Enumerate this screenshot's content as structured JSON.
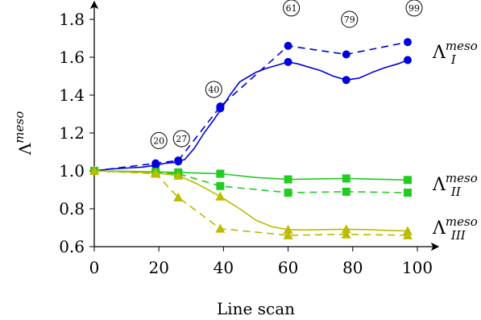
{
  "chart_data": {
    "type": "line",
    "xlabel": "Line scan",
    "ylabel": "Λ",
    "ylabel_sup": "meso",
    "xlim": [
      0,
      100
    ],
    "ylim": [
      0.6,
      1.9
    ],
    "x_ticks": [
      "0",
      "20",
      "40",
      "60",
      "80",
      "100"
    ],
    "y_ticks": [
      "0.6",
      "0.8",
      "1.0",
      "1.2",
      "1.4",
      "1.6",
      "1.8"
    ],
    "grid": false,
    "colors": {
      "I": "#0000dd",
      "II": "#22cc22",
      "III": "#bbbb00"
    },
    "series": [
      {
        "key": "I",
        "label": "Λ",
        "label_sup": "meso",
        "label_sub": "I",
        "style": "solid",
        "marker": "circle",
        "x": [
          0,
          5,
          10,
          15,
          19,
          22,
          25,
          28,
          31,
          34,
          37,
          39,
          42,
          45,
          48,
          50,
          53,
          56,
          60,
          63,
          66,
          70,
          74,
          78,
          82,
          86,
          90,
          94,
          97
        ],
        "y": [
          1.0,
          1.01,
          1.015,
          1.02,
          1.03,
          1.04,
          1.045,
          1.06,
          1.12,
          1.2,
          1.27,
          1.32,
          1.4,
          1.47,
          1.5,
          1.52,
          1.54,
          1.555,
          1.575,
          1.565,
          1.55,
          1.53,
          1.5,
          1.48,
          1.49,
          1.52,
          1.545,
          1.565,
          1.585
        ],
        "marker_x": [
          0,
          19,
          26,
          39,
          60,
          78,
          97
        ],
        "marker_y": [
          1.0,
          1.03,
          1.05,
          1.33,
          1.575,
          1.48,
          1.585
        ]
      },
      {
        "key": "I",
        "label": "",
        "style": "dashed",
        "marker": "circle",
        "x": [
          0,
          19,
          26,
          39,
          60,
          78,
          97
        ],
        "y": [
          1.0,
          1.04,
          1.055,
          1.34,
          1.66,
          1.615,
          1.68
        ],
        "marker_x": [
          0,
          19,
          26,
          39,
          60,
          78,
          97
        ],
        "marker_y": [
          1.0,
          1.04,
          1.055,
          1.34,
          1.66,
          1.615,
          1.68
        ]
      },
      {
        "key": "II",
        "label": "Λ",
        "label_sup": "meso",
        "label_sub": "II",
        "style": "solid",
        "marker": "square",
        "x": [
          0,
          10,
          19,
          26,
          39,
          50,
          60,
          70,
          78,
          90,
          97
        ],
        "y": [
          1.0,
          0.998,
          0.995,
          0.992,
          0.985,
          0.965,
          0.955,
          0.958,
          0.96,
          0.955,
          0.952
        ],
        "marker_x": [
          0,
          19,
          26,
          39,
          60,
          78,
          97
        ],
        "marker_y": [
          1.0,
          0.995,
          0.992,
          0.985,
          0.955,
          0.96,
          0.952
        ]
      },
      {
        "key": "II",
        "label": "",
        "style": "dashed",
        "marker": "square",
        "x": [
          0,
          19,
          26,
          39,
          60,
          78,
          97
        ],
        "y": [
          1.0,
          0.99,
          0.985,
          0.92,
          0.885,
          0.89,
          0.885
        ],
        "marker_x": [
          0,
          19,
          26,
          39,
          60,
          78,
          97
        ],
        "marker_y": [
          1.0,
          0.99,
          0.985,
          0.92,
          0.885,
          0.89,
          0.885
        ]
      },
      {
        "key": "III",
        "label": "Λ",
        "label_sup": "meso",
        "label_sub": "III",
        "style": "solid",
        "marker": "triangle",
        "x": [
          0,
          10,
          19,
          26,
          32,
          39,
          45,
          50,
          55,
          60,
          65,
          70,
          78,
          85,
          90,
          97
        ],
        "y": [
          1.0,
          0.995,
          0.99,
          0.975,
          0.93,
          0.865,
          0.8,
          0.74,
          0.705,
          0.69,
          0.688,
          0.69,
          0.692,
          0.69,
          0.686,
          0.683
        ],
        "marker_x": [
          0,
          19,
          26,
          39,
          60,
          78,
          97
        ],
        "marker_y": [
          1.0,
          0.99,
          0.975,
          0.865,
          0.69,
          0.692,
          0.683
        ]
      },
      {
        "key": "III",
        "label": "",
        "style": "dashed",
        "marker": "triangle",
        "x": [
          0,
          19,
          26,
          39,
          60,
          78,
          97
        ],
        "y": [
          1.0,
          0.985,
          0.86,
          0.695,
          0.66,
          0.665,
          0.66
        ],
        "marker_x": [
          0,
          19,
          26,
          39,
          60,
          78,
          97
        ],
        "marker_y": [
          1.0,
          0.985,
          0.86,
          0.695,
          0.66,
          0.665,
          0.66
        ]
      }
    ],
    "annotations": [
      {
        "text": "20",
        "x": 20,
        "y": 1.16
      },
      {
        "text": "27",
        "x": 27,
        "y": 1.17
      },
      {
        "text": "40",
        "x": 37,
        "y": 1.43
      },
      {
        "text": "61",
        "x": 61,
        "y": 1.86
      },
      {
        "text": "79",
        "x": 79,
        "y": 1.8
      },
      {
        "text": "99",
        "x": 99,
        "y": 1.86
      }
    ]
  }
}
